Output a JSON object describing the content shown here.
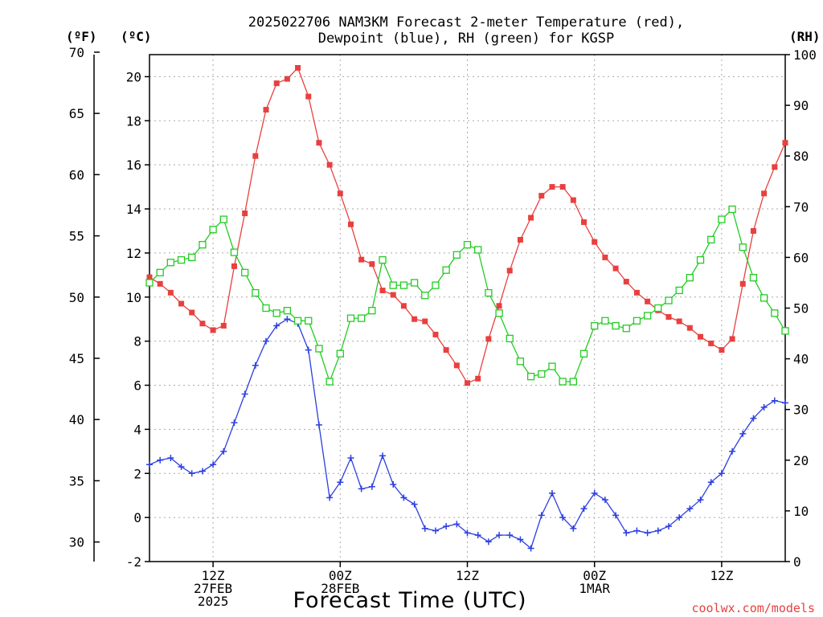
{
  "chart_data": {
    "type": "line",
    "title_line1": "2025022706 NAM3KM Forecast 2-meter Temperature (red),",
    "title_line2": "Dewpoint (blue), RH (green) for KGSP",
    "xlabel": "Forecast Time (UTC)",
    "credit": "coolwx.com/models",
    "units": {
      "fahrenheit": "(ºF)",
      "celsius": "(ºC)",
      "rh": "(RH)"
    },
    "axes": {
      "celsius": {
        "ylim": [
          -2,
          21
        ],
        "ticks": [
          "-2",
          "0",
          "2",
          "4",
          "6",
          "8",
          "10",
          "12",
          "14",
          "16",
          "18",
          "20"
        ]
      },
      "fahrenheit": {
        "ylim": [
          28.4,
          69.8
        ],
        "ticks": [
          "30",
          "35",
          "40",
          "45",
          "50",
          "55",
          "60",
          "65",
          "70"
        ]
      },
      "rh": {
        "ylim": [
          0,
          100
        ],
        "ticks": [
          "0",
          "10",
          "20",
          "30",
          "40",
          "50",
          "60",
          "70",
          "80",
          "90",
          "100"
        ]
      },
      "x": {
        "range_hours": [
          0,
          60
        ],
        "ticks": [
          {
            "hour": 6,
            "lines": [
              "12Z",
              "27FEB",
              "2025"
            ]
          },
          {
            "hour": 18,
            "lines": [
              "00Z",
              "28FEB"
            ]
          },
          {
            "hour": 30,
            "lines": [
              "12Z"
            ]
          },
          {
            "hour": 42,
            "lines": [
              "00Z",
              "1MAR"
            ]
          },
          {
            "hour": 54,
            "lines": [
              "12Z"
            ]
          }
        ]
      },
      "grid": true
    },
    "hours": [
      0,
      1,
      2,
      3,
      4,
      5,
      6,
      7,
      8,
      9,
      10,
      11,
      12,
      13,
      14,
      15,
      16,
      17,
      18,
      19,
      20,
      21,
      22,
      23,
      24,
      25,
      26,
      27,
      28,
      29,
      30,
      31,
      32,
      33,
      34,
      35,
      36,
      37,
      38,
      39,
      40,
      41,
      42,
      43,
      44,
      45,
      46,
      47,
      48,
      49,
      50,
      51,
      52,
      53,
      54,
      55,
      56,
      57,
      58,
      59,
      60
    ],
    "series": [
      {
        "name": "Temperature",
        "color": "#e8403f",
        "marker": "square-filled",
        "axis": "celsius",
        "values": [
          10.9,
          10.6,
          10.2,
          9.7,
          9.3,
          8.8,
          8.5,
          8.7,
          11.4,
          13.8,
          16.4,
          18.5,
          19.7,
          19.9,
          20.4,
          19.1,
          17.0,
          16.0,
          14.7,
          13.3,
          11.7,
          11.5,
          10.3,
          10.1,
          9.6,
          9.0,
          8.9,
          8.3,
          7.6,
          6.9,
          6.1,
          6.3,
          8.1,
          9.6,
          11.2,
          12.6,
          13.6,
          14.6,
          15.0,
          15.0,
          14.4,
          13.4,
          12.5,
          11.8,
          11.3,
          10.7,
          10.2,
          9.8,
          9.4,
          9.1,
          8.9,
          8.6,
          8.2,
          7.9,
          7.6,
          8.1,
          10.6,
          13.0,
          14.7,
          15.9,
          17.0
        ]
      },
      {
        "name": "Dewpoint",
        "color": "#2c3fe0",
        "marker": "plus",
        "axis": "celsius",
        "values": [
          2.4,
          2.6,
          2.7,
          2.3,
          2.0,
          2.1,
          2.4,
          3.0,
          4.3,
          5.6,
          6.9,
          8.0,
          8.7,
          9.0,
          8.8,
          7.6,
          4.2,
          0.9,
          1.6,
          2.7,
          1.3,
          1.4,
          2.8,
          1.5,
          0.9,
          0.6,
          -0.5,
          -0.6,
          -0.4,
          -0.3,
          -0.7,
          -0.8,
          -1.1,
          -0.8,
          -0.8,
          -1.0,
          -1.4,
          0.1,
          1.1,
          0.0,
          -0.5,
          0.4,
          1.1,
          0.8,
          0.1,
          -0.7,
          -0.6,
          -0.7,
          -0.6,
          -0.4,
          0.0,
          0.4,
          0.8,
          1.6,
          2.0,
          3.0,
          3.8,
          4.5,
          5.0,
          5.3,
          5.2
        ]
      },
      {
        "name": "RH",
        "color": "#22cc22",
        "marker": "square-open",
        "axis": "rh",
        "values": [
          55,
          57,
          59,
          59.5,
          60,
          62.5,
          65.5,
          67.5,
          61,
          57,
          53,
          50,
          49,
          49.5,
          47.5,
          47.5,
          42,
          35.5,
          41,
          48,
          48,
          49.5,
          59.5,
          54.5,
          54.5,
          55,
          52.5,
          54.5,
          57.5,
          60.5,
          62.5,
          61.5,
          53,
          49,
          44,
          39.5,
          36.5,
          37,
          38.5,
          35.5,
          35.5,
          41,
          46.5,
          47.5,
          46.5,
          46,
          47.5,
          48.5,
          50,
          51.5,
          53.5,
          56,
          59.5,
          63.5,
          67.5,
          69.5,
          62,
          56,
          52,
          49,
          45.5
        ]
      }
    ]
  }
}
